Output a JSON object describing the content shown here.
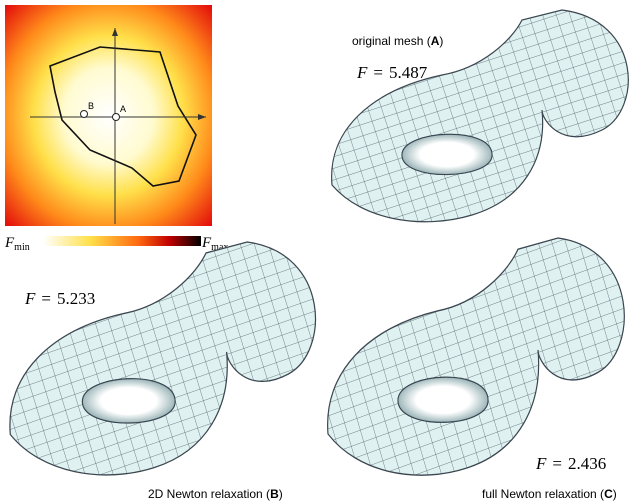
{
  "inset": {
    "point_b": "B",
    "point_a": "A"
  },
  "colorbar": {
    "min_symbol": "F",
    "min_sub": "min",
    "max_symbol": "F",
    "max_sub": "max"
  },
  "panels": [
    {
      "caption_prefix": "original mesh (",
      "letter": "A",
      "caption_suffix": ")",
      "symbol": "F",
      "equals": "=",
      "energy": 5.487
    },
    {
      "caption_prefix": "2D Newton relaxation (",
      "letter": "B",
      "caption_suffix": ")",
      "symbol": "F",
      "equals": "=",
      "energy": 5.233
    },
    {
      "caption_prefix": "full Newton relaxation (",
      "letter": "C",
      "caption_suffix": ")",
      "symbol": "F",
      "equals": "=",
      "energy": 2.436
    }
  ]
}
